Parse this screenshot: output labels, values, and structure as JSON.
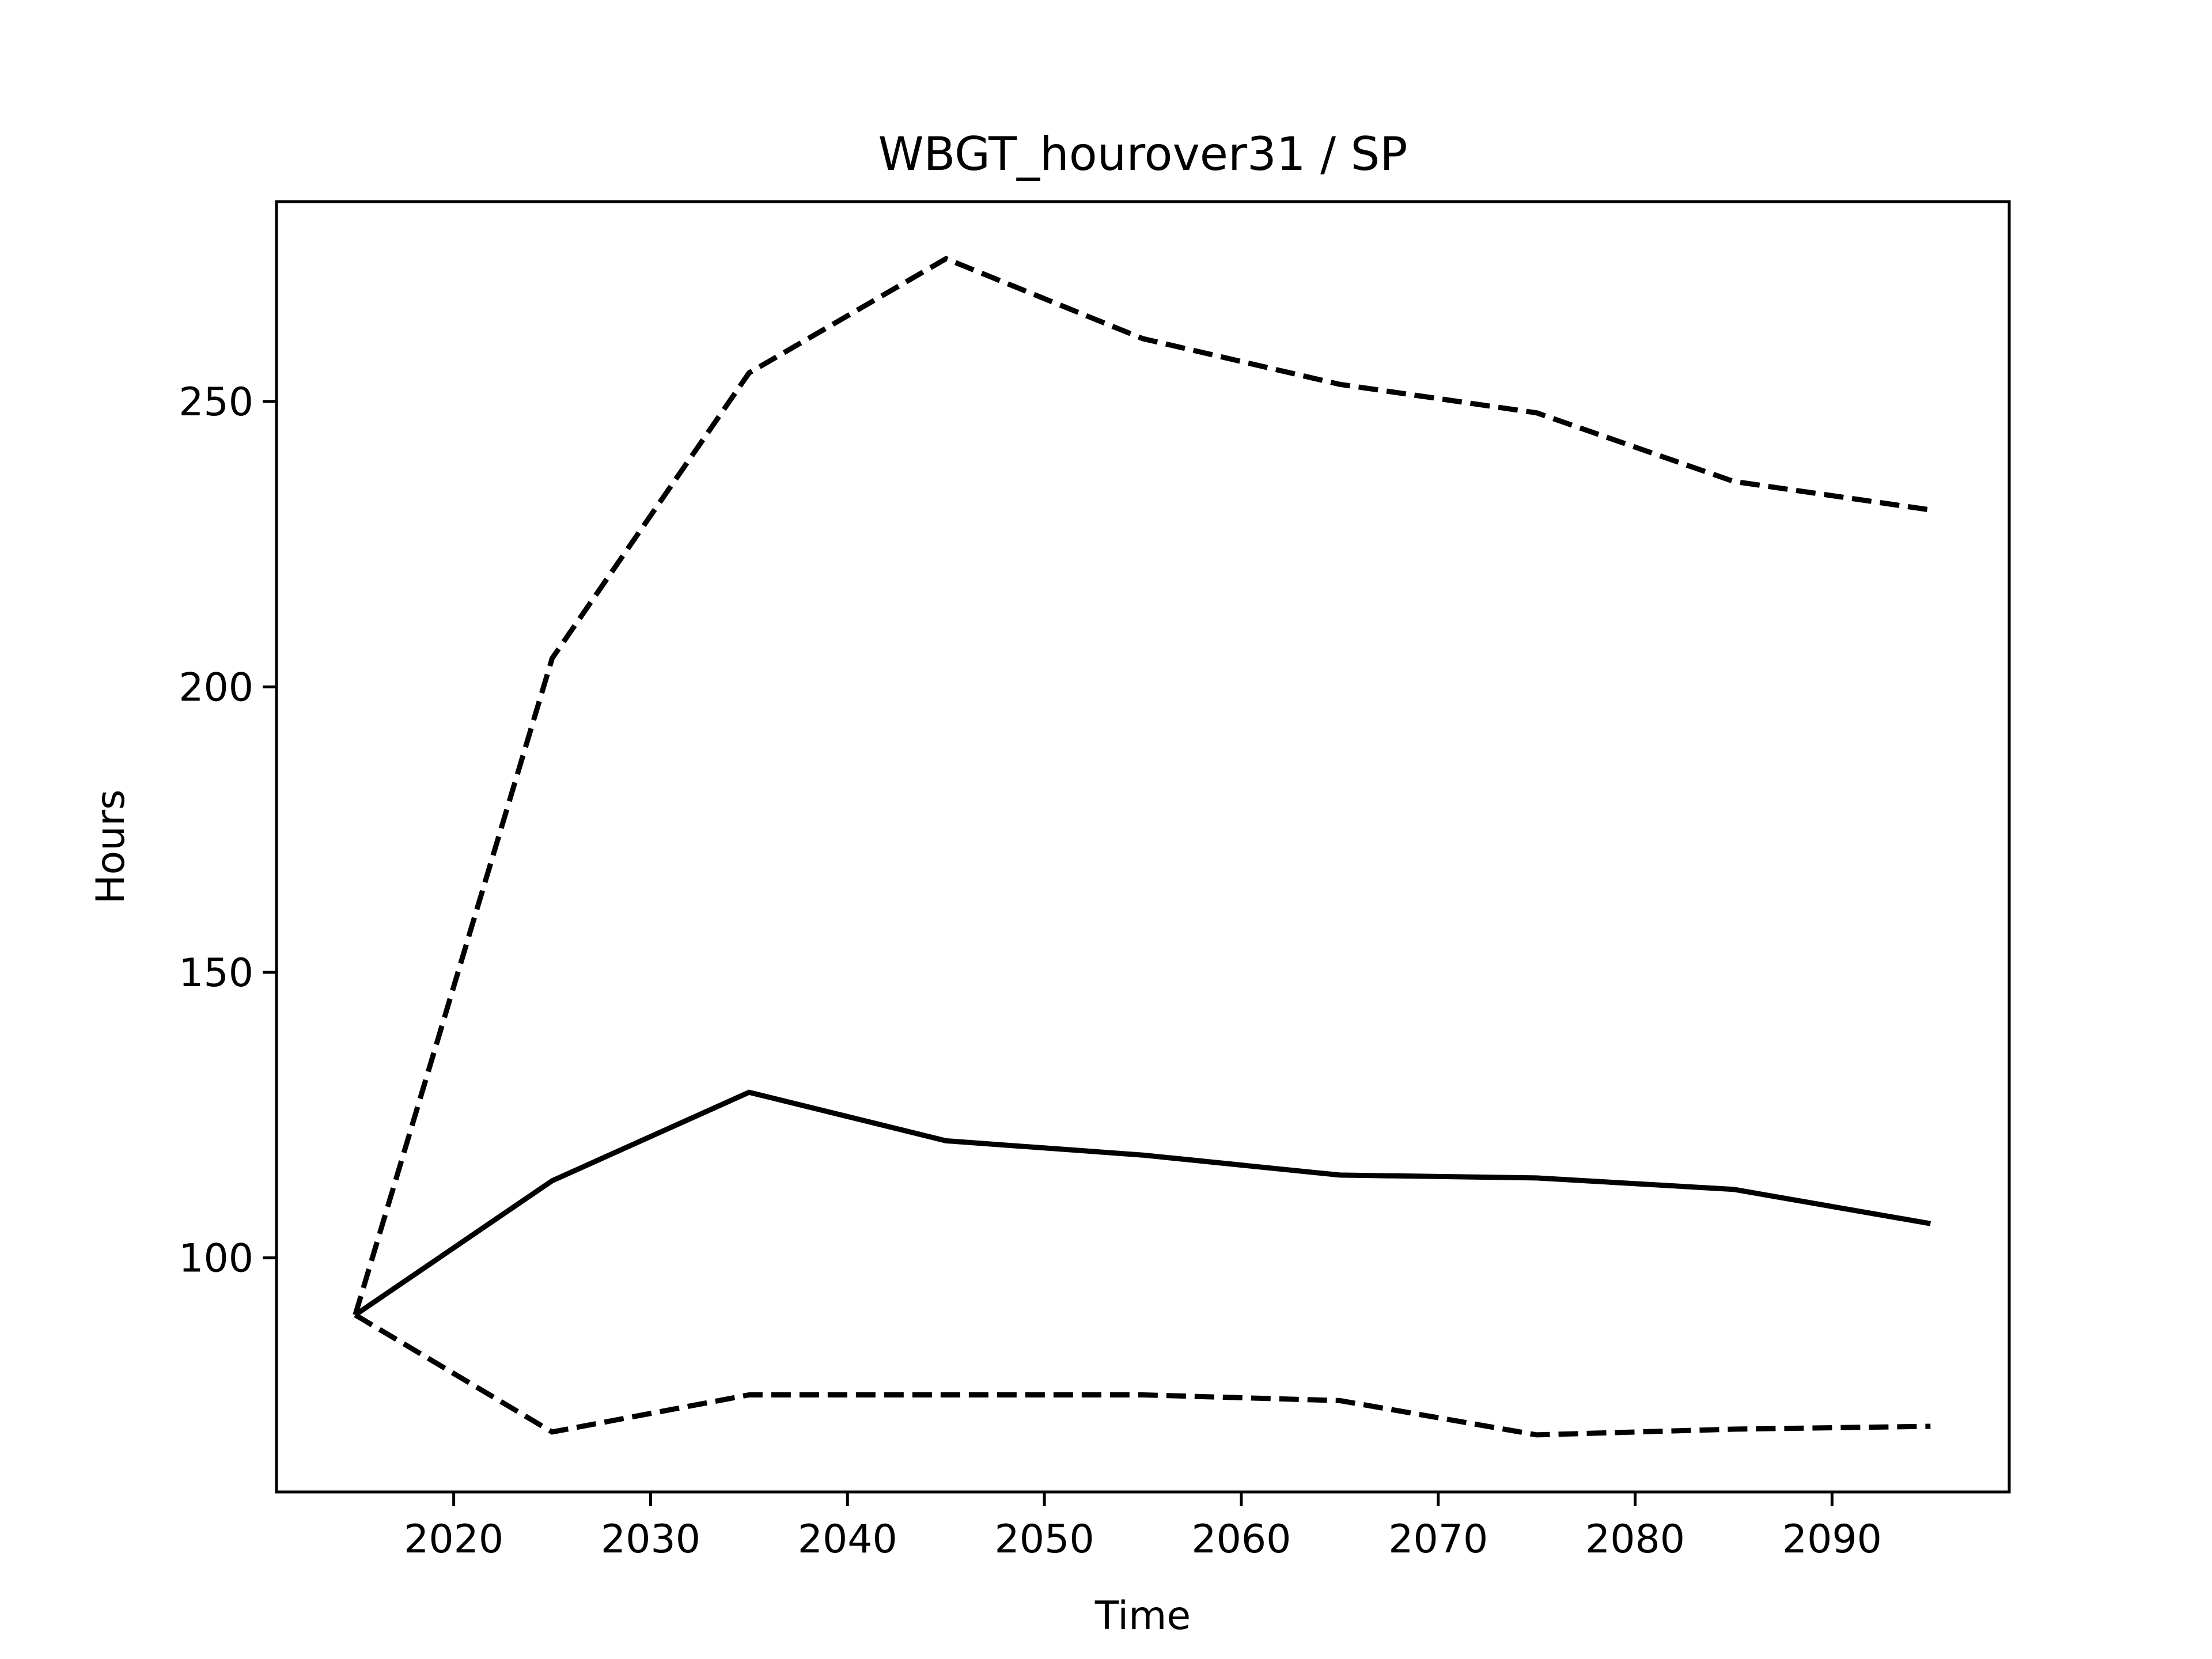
{
  "chart_data": {
    "type": "line",
    "title": "WBGT_hourover31 / SP",
    "xlabel": "Time",
    "ylabel": "Hours",
    "xlim": [
      2011,
      2099
    ],
    "ylim": [
      59,
      285
    ],
    "x_ticks": [
      2020,
      2030,
      2040,
      2050,
      2060,
      2070,
      2080,
      2090
    ],
    "y_ticks": [
      100,
      150,
      200,
      250
    ],
    "grid": false,
    "legend": "none",
    "line_color": "#000000",
    "x": [
      2015,
      2025,
      2035,
      2045,
      2055,
      2065,
      2075,
      2085,
      2095
    ],
    "series": [
      {
        "style": "dashed",
        "values": [
          90,
          205,
          255,
          275,
          261,
          253,
          248,
          236,
          231
        ]
      },
      {
        "style": "solid",
        "values": [
          90,
          113.5,
          129,
          120.5,
          118,
          114.5,
          114,
          112,
          106
        ]
      },
      {
        "style": "dashed",
        "values": [
          90,
          69.5,
          76,
          76,
          76,
          75,
          69,
          70,
          70.5
        ]
      }
    ]
  }
}
